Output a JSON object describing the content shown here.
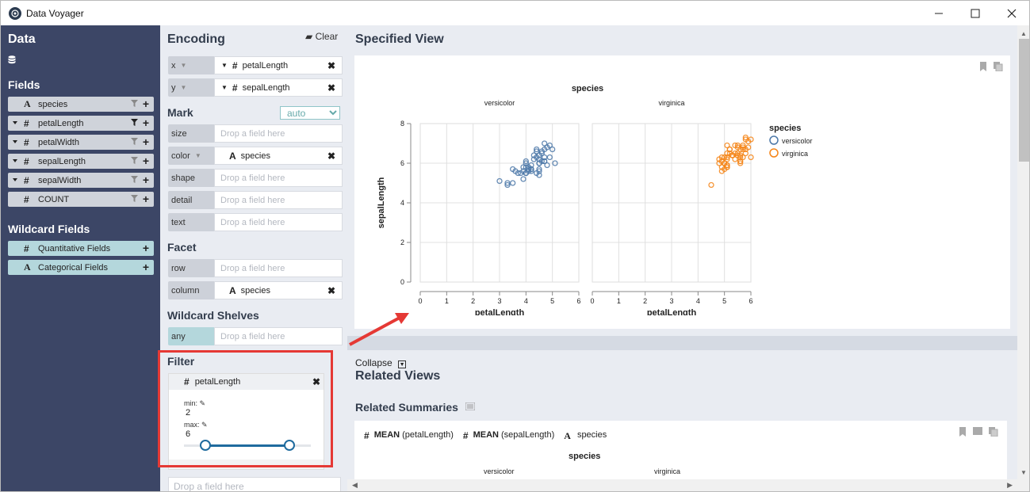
{
  "window": {
    "title": "Data Voyager"
  },
  "data_pane": {
    "title": "Data",
    "fields_heading": "Fields",
    "fields": [
      {
        "type": "A",
        "name": "species",
        "caret": false
      },
      {
        "type": "#",
        "name": "petalLength",
        "caret": true
      },
      {
        "type": "#",
        "name": "petalWidth",
        "caret": true
      },
      {
        "type": "#",
        "name": "sepalLength",
        "caret": true
      },
      {
        "type": "#",
        "name": "sepalWidth",
        "caret": true
      },
      {
        "type": "#",
        "name": "COUNT",
        "caret": false
      }
    ],
    "wildcard_heading": "Wildcard Fields",
    "wildcards": [
      {
        "type": "#",
        "name": "Quantitative Fields"
      },
      {
        "type": "A",
        "name": "Categorical Fields"
      }
    ]
  },
  "encoding": {
    "title": "Encoding",
    "clear_label": "Clear",
    "x": {
      "channel": "x",
      "type": "#",
      "field": "petalLength"
    },
    "y": {
      "channel": "y",
      "type": "#",
      "field": "sepalLength"
    },
    "mark_heading": "Mark",
    "mark_value": "auto",
    "drop_placeholder": "Drop a field here",
    "mark_channels": {
      "size": "size",
      "color": "color",
      "color_type": "A",
      "color_field": "species",
      "shape": "shape",
      "detail": "detail",
      "text": "text"
    },
    "facet_heading": "Facet",
    "row": "row",
    "column": "column",
    "column_type": "A",
    "column_field": "species",
    "wildcard_heading": "Wildcard Shelves",
    "any": "any",
    "filter_heading": "Filter",
    "filter": {
      "type": "#",
      "field": "petalLength",
      "min_label": "min:",
      "min": "2",
      "max_label": "max:",
      "max": "6",
      "range": [
        2,
        6
      ]
    },
    "filter_drop": "Drop a field here"
  },
  "specified": {
    "title": "Specified View",
    "chart_title": "species",
    "collapse_label": "Collapse",
    "related_views": "Related Views",
    "related_summaries": "Related Summaries",
    "summary_fields": [
      {
        "type": "#",
        "agg": "MEAN",
        "field": "(petalLength)"
      },
      {
        "type": "#",
        "agg": "MEAN",
        "field": "(sepalLength)"
      },
      {
        "type": "A",
        "agg": "",
        "field": "species"
      }
    ],
    "summary_title": "species",
    "summary_cols": [
      "versicolor",
      "virginica"
    ]
  },
  "colors": {
    "versicolor": "#4c78a8",
    "virginica": "#f58518",
    "sidebar": "#3c4666",
    "highlight": "#e53935",
    "slider": "#1f6b9e"
  },
  "chart_data": {
    "type": "scatter",
    "title": "species",
    "xlabel": "petalLength",
    "ylabel": "sepalLength",
    "facets": [
      "versicolor",
      "virginica"
    ],
    "xlim": [
      0,
      6
    ],
    "ylim": [
      0,
      8
    ],
    "xticks": [
      0,
      1,
      2,
      3,
      4,
      5,
      6
    ],
    "yticks": [
      0,
      2,
      4,
      6,
      8
    ],
    "grid": true,
    "legend": {
      "title": "species",
      "entries": [
        "versicolor",
        "virginica"
      ],
      "position": "right"
    },
    "series": [
      {
        "name": "versicolor",
        "points": [
          [
            4.7,
            7.0
          ],
          [
            4.5,
            6.4
          ],
          [
            4.9,
            6.9
          ],
          [
            4.0,
            5.5
          ],
          [
            4.6,
            6.5
          ],
          [
            4.5,
            5.7
          ],
          [
            4.7,
            6.3
          ],
          [
            3.3,
            4.9
          ],
          [
            4.6,
            6.6
          ],
          [
            3.9,
            5.2
          ],
          [
            3.5,
            5.0
          ],
          [
            4.2,
            5.9
          ],
          [
            4.0,
            6.0
          ],
          [
            4.7,
            6.1
          ],
          [
            3.6,
            5.6
          ],
          [
            4.4,
            6.7
          ],
          [
            4.5,
            5.6
          ],
          [
            4.1,
            5.8
          ],
          [
            4.5,
            6.2
          ],
          [
            3.9,
            5.6
          ],
          [
            4.8,
            5.9
          ],
          [
            4.0,
            6.1
          ],
          [
            4.9,
            6.3
          ],
          [
            4.7,
            6.1
          ],
          [
            4.3,
            6.4
          ],
          [
            4.4,
            6.6
          ],
          [
            4.8,
            6.8
          ],
          [
            5.0,
            6.7
          ],
          [
            4.5,
            6.0
          ],
          [
            3.5,
            5.7
          ],
          [
            3.8,
            5.5
          ],
          [
            3.7,
            5.5
          ],
          [
            3.9,
            5.8
          ],
          [
            5.1,
            6.0
          ],
          [
            4.5,
            5.4
          ],
          [
            4.5,
            6.0
          ],
          [
            4.7,
            6.7
          ],
          [
            4.4,
            6.3
          ],
          [
            4.1,
            5.6
          ],
          [
            4.0,
            5.5
          ],
          [
            4.4,
            5.5
          ],
          [
            4.6,
            6.1
          ],
          [
            4.0,
            5.8
          ],
          [
            3.3,
            5.0
          ],
          [
            4.2,
            5.6
          ],
          [
            4.2,
            5.7
          ],
          [
            4.2,
            5.7
          ],
          [
            4.3,
            6.2
          ],
          [
            3.0,
            5.1
          ],
          [
            4.1,
            5.7
          ]
        ]
      },
      {
        "name": "virginica",
        "points": [
          [
            6.0,
            6.3
          ],
          [
            5.1,
            5.8
          ],
          [
            5.9,
            7.1
          ],
          [
            5.6,
            6.3
          ],
          [
            5.8,
            6.5
          ],
          [
            4.5,
            4.9
          ],
          [
            5.8,
            6.7
          ],
          [
            5.5,
            6.4
          ],
          [
            5.3,
            6.4
          ],
          [
            5.5,
            6.8
          ],
          [
            5.0,
            5.7
          ],
          [
            5.1,
            5.8
          ],
          [
            5.3,
            6.4
          ],
          [
            5.5,
            6.5
          ],
          [
            5.0,
            6.0
          ],
          [
            4.9,
            5.6
          ],
          [
            4.9,
            6.3
          ],
          [
            5.7,
            6.7
          ],
          [
            4.8,
            6.2
          ],
          [
            4.9,
            6.1
          ],
          [
            5.6,
            6.4
          ],
          [
            5.8,
            7.2
          ],
          [
            5.1,
            6.3
          ],
          [
            5.6,
            6.1
          ],
          [
            5.1,
            5.9
          ],
          [
            5.6,
            6.7
          ],
          [
            5.5,
            6.9
          ],
          [
            5.4,
            6.9
          ],
          [
            5.1,
            6.9
          ],
          [
            5.7,
            6.8
          ],
          [
            5.2,
            6.7
          ],
          [
            5.0,
            6.3
          ],
          [
            5.2,
            6.5
          ],
          [
            5.4,
            6.2
          ],
          [
            5.1,
            5.9
          ],
          [
            5.9,
            6.8
          ],
          [
            5.7,
            6.9
          ],
          [
            5.2,
            6.7
          ],
          [
            6.0,
            7.2
          ],
          [
            5.8,
            7.3
          ],
          [
            5.0,
            6.0
          ],
          [
            4.8,
            6.0
          ],
          [
            5.1,
            6.5
          ],
          [
            5.1,
            6.2
          ],
          [
            5.4,
            6.5
          ],
          [
            5.3,
            6.4
          ],
          [
            5.6,
            6.0
          ],
          [
            5.7,
            6.3
          ],
          [
            4.9,
            5.8
          ],
          [
            5.6,
            6.1
          ]
        ]
      }
    ]
  }
}
